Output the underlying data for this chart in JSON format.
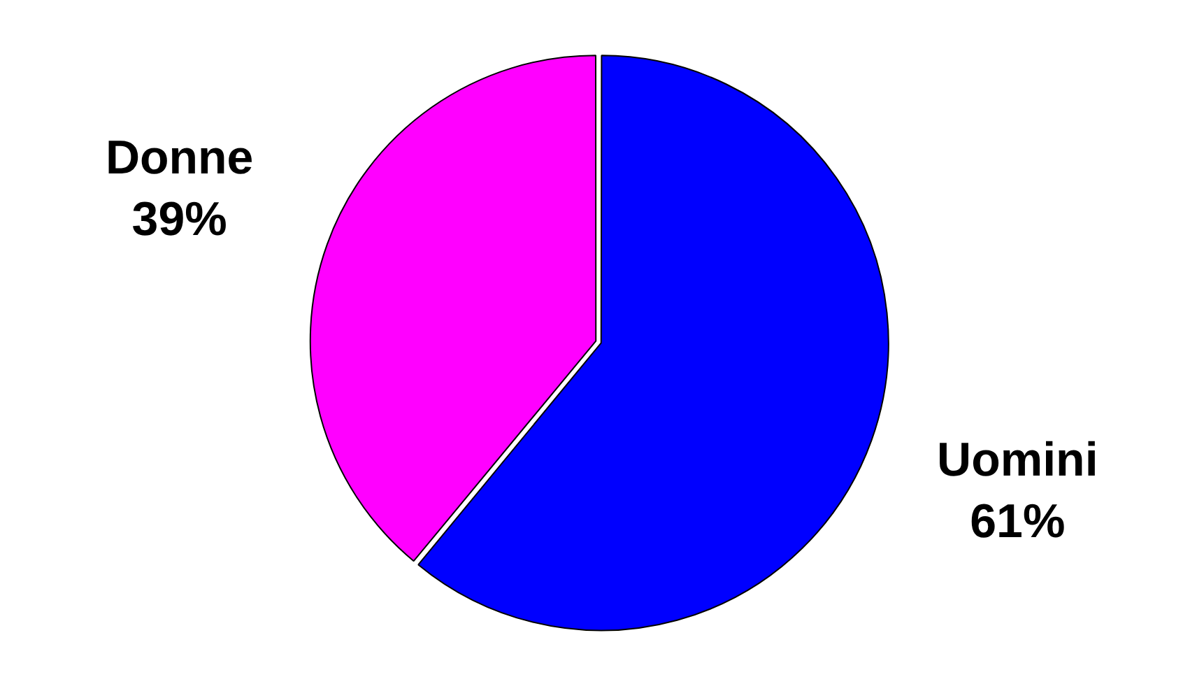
{
  "chart_data": {
    "type": "pie",
    "categories": [
      "Uomini",
      "Donne"
    ],
    "values": [
      61,
      39
    ],
    "colors": [
      "#0000ff",
      "#ff00ff"
    ],
    "value_labels": [
      "61%",
      "39%"
    ],
    "legend": false
  }
}
